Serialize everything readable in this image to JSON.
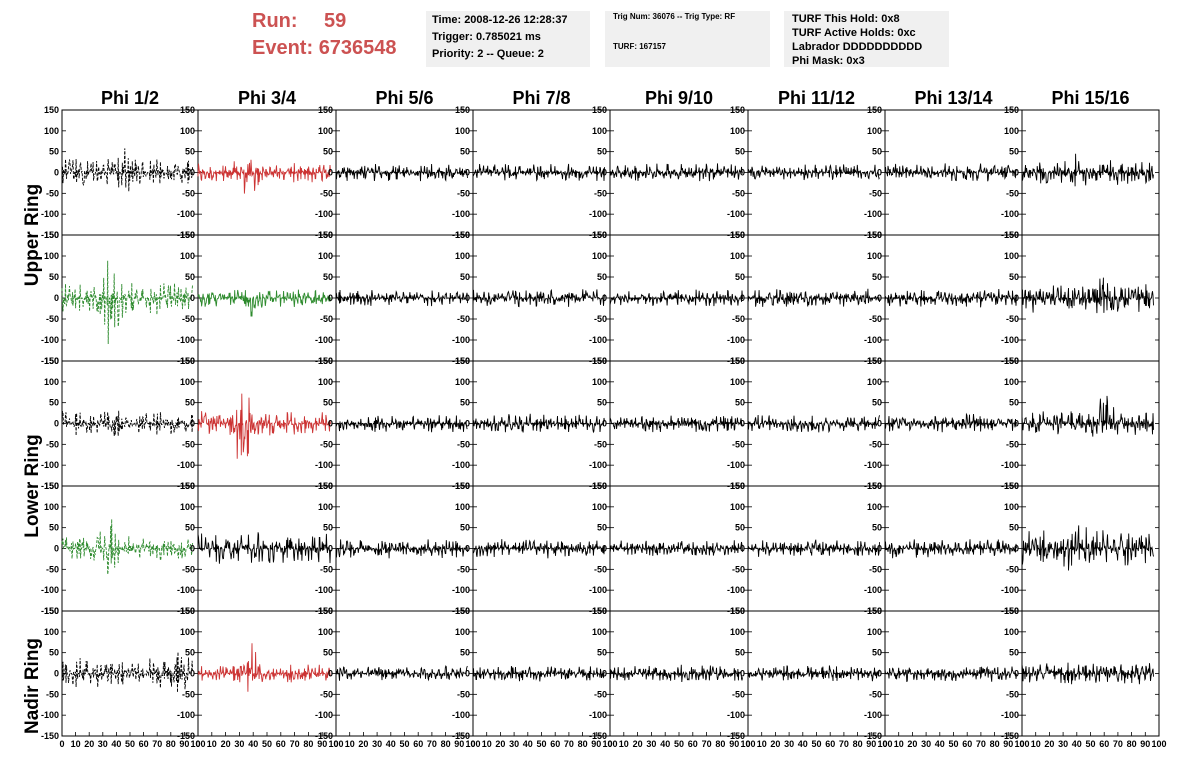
{
  "header": {
    "run_label": "Run:",
    "run_value": "59",
    "event_label": "Event:",
    "event_value": "6736548"
  },
  "info_panels": {
    "time": "Time: 2008-12-26 12:28:37",
    "trigger": "Trigger: 0.785021 ms",
    "priority": "Priority: 2 -- Queue: 2",
    "trig_num": "Trig Num: 36076 -- Trig Type: RF",
    "turf": "TURF: 167157",
    "turf_hold": "TURF This Hold: 0x8",
    "turf_active": "TURF Active Holds: 0xc",
    "labrador": "Labrador DDDDDDDDDD",
    "phi_mask": "Phi Mask: 0x3"
  },
  "colors": {
    "trigger_red": "#cc3333",
    "trigger_green": "#2e8b2e",
    "trace": "#000000",
    "title_red": "#cc5252"
  },
  "chart_data": {
    "type": "line",
    "columns": [
      "Phi 1/2",
      "Phi 3/4",
      "Phi 5/6",
      "Phi 7/8",
      "Phi 9/10",
      "Phi 11/12",
      "Phi 13/14",
      "Phi 15/16"
    ],
    "rows": [
      "Upper Ring",
      "Lower Ring",
      "Nadir Ring"
    ],
    "xlim": [
      0,
      100
    ],
    "ylim": [
      -150,
      150
    ],
    "x_tick_labels": [
      "0",
      "10",
      "20",
      "30",
      "40",
      "50",
      "60",
      "70",
      "80",
      "90",
      "100"
    ],
    "y_tick_labels": [
      "150",
      "100",
      "50",
      "0",
      "-50",
      "-100",
      "-150"
    ],
    "panels": [
      {
        "row": 0,
        "col": 0,
        "style": "dashed",
        "color": "#000000",
        "amplitude": 35,
        "burst_center": 45,
        "burst_amp": 70
      },
      {
        "row": 0,
        "col": 1,
        "style": "solid",
        "color": "#cc3333",
        "amplitude": 25,
        "burst_center": 36,
        "burst_amp": 75
      },
      {
        "row": 0,
        "col": 2,
        "style": "solid",
        "color": "#000000",
        "amplitude": 22
      },
      {
        "row": 0,
        "col": 3,
        "style": "solid",
        "color": "#000000",
        "amplitude": 22
      },
      {
        "row": 0,
        "col": 4,
        "style": "solid",
        "color": "#000000",
        "amplitude": 22
      },
      {
        "row": 0,
        "col": 5,
        "style": "solid",
        "color": "#000000",
        "amplitude": 20
      },
      {
        "row": 0,
        "col": 6,
        "style": "solid",
        "color": "#000000",
        "amplitude": 22
      },
      {
        "row": 0,
        "col": 7,
        "style": "solid",
        "color": "#000000",
        "amplitude": 30,
        "burst_center": 40,
        "burst_amp": 55
      },
      {
        "row": 1,
        "col": 0,
        "style": "dashed",
        "color": "#2e8b2e",
        "amplitude": 40,
        "burst_center": 35,
        "burst_amp": 130
      },
      {
        "row": 1,
        "col": 1,
        "style": "solid",
        "color": "#2e8b2e",
        "amplitude": 22,
        "burst_center": 40,
        "burst_amp": 55
      },
      {
        "row": 1,
        "col": 2,
        "style": "solid",
        "color": "#000000",
        "amplitude": 20
      },
      {
        "row": 1,
        "col": 3,
        "style": "solid",
        "color": "#000000",
        "amplitude": 22
      },
      {
        "row": 1,
        "col": 4,
        "style": "solid",
        "color": "#000000",
        "amplitude": 20
      },
      {
        "row": 1,
        "col": 5,
        "style": "solid",
        "color": "#000000",
        "amplitude": 22
      },
      {
        "row": 1,
        "col": 6,
        "style": "solid",
        "color": "#000000",
        "amplitude": 24
      },
      {
        "row": 1,
        "col": 7,
        "style": "solid",
        "color": "#000000",
        "amplitude": 35,
        "burst_center": 58,
        "burst_amp": 65
      },
      {
        "row": 2,
        "col": 0,
        "style": "dashed",
        "color": "#000000",
        "amplitude": 30,
        "burst_center": 40,
        "burst_amp": 40
      },
      {
        "row": 2,
        "col": 1,
        "style": "solid",
        "color": "#cc3333",
        "amplitude": 30,
        "burst_center": 33,
        "burst_amp": 140
      },
      {
        "row": 2,
        "col": 2,
        "style": "solid",
        "color": "#000000",
        "amplitude": 24
      },
      {
        "row": 2,
        "col": 3,
        "style": "solid",
        "color": "#000000",
        "amplitude": 24
      },
      {
        "row": 2,
        "col": 4,
        "style": "solid",
        "color": "#000000",
        "amplitude": 22
      },
      {
        "row": 2,
        "col": 5,
        "style": "solid",
        "color": "#000000",
        "amplitude": 22
      },
      {
        "row": 2,
        "col": 6,
        "style": "solid",
        "color": "#000000",
        "amplitude": 24
      },
      {
        "row": 2,
        "col": 7,
        "style": "solid",
        "color": "#000000",
        "amplitude": 30,
        "burst_center": 60,
        "burst_amp": 80
      },
      {
        "row": 3,
        "col": 0,
        "style": "dashed",
        "color": "#2e8b2e",
        "amplitude": 30,
        "burst_center": 35,
        "burst_amp": 85
      },
      {
        "row": 3,
        "col": 1,
        "style": "solid",
        "color": "#000000",
        "amplitude": 40
      },
      {
        "row": 3,
        "col": 2,
        "style": "solid",
        "color": "#000000",
        "amplitude": 24
      },
      {
        "row": 3,
        "col": 3,
        "style": "solid",
        "color": "#000000",
        "amplitude": 24
      },
      {
        "row": 3,
        "col": 4,
        "style": "solid",
        "color": "#000000",
        "amplitude": 20
      },
      {
        "row": 3,
        "col": 5,
        "style": "solid",
        "color": "#000000",
        "amplitude": 22
      },
      {
        "row": 3,
        "col": 6,
        "style": "solid",
        "color": "#000000",
        "amplitude": 24
      },
      {
        "row": 3,
        "col": 7,
        "style": "solid",
        "color": "#000000",
        "amplitude": 45,
        "burst_center": 40,
        "burst_amp": 70
      },
      {
        "row": 4,
        "col": 0,
        "style": "dashed",
        "color": "#000000",
        "amplitude": 38,
        "burst_center": 85,
        "burst_amp": 70
      },
      {
        "row": 4,
        "col": 1,
        "style": "solid",
        "color": "#cc3333",
        "amplitude": 22,
        "burst_center": 37,
        "burst_amp": 80
      },
      {
        "row": 4,
        "col": 2,
        "style": "solid",
        "color": "#000000",
        "amplitude": 18
      },
      {
        "row": 4,
        "col": 3,
        "style": "solid",
        "color": "#000000",
        "amplitude": 20
      },
      {
        "row": 4,
        "col": 4,
        "style": "solid",
        "color": "#000000",
        "amplitude": 22
      },
      {
        "row": 4,
        "col": 5,
        "style": "solid",
        "color": "#000000",
        "amplitude": 20
      },
      {
        "row": 4,
        "col": 6,
        "style": "solid",
        "color": "#000000",
        "amplitude": 20
      },
      {
        "row": 4,
        "col": 7,
        "style": "solid",
        "color": "#000000",
        "amplitude": 28
      }
    ]
  }
}
